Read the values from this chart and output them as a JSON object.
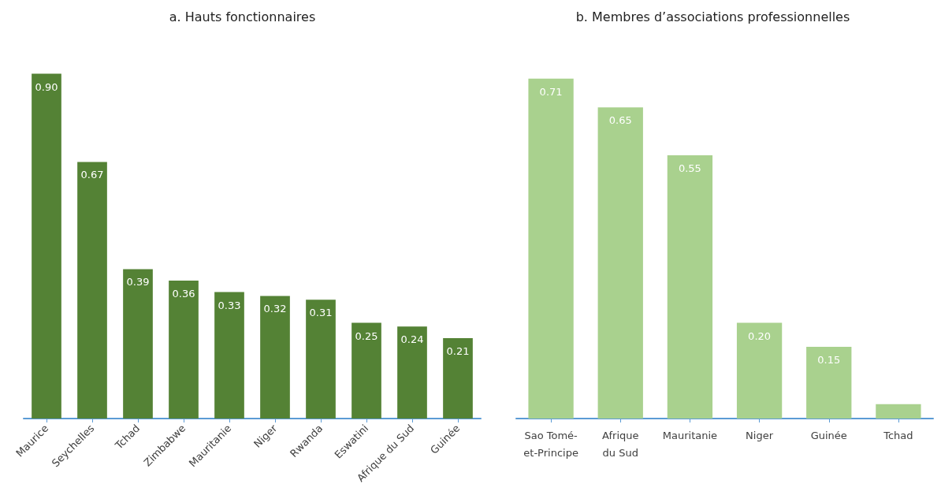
{
  "chart_data": [
    {
      "type": "bar",
      "title": "a. Hauts fonctionnaires",
      "categories": [
        "Maurice",
        "Seychelles",
        "Tchad",
        "Zimbabwe",
        "Mauritanie",
        "Niger",
        "Rwanda",
        "Eswatini",
        "Afrique du Sud",
        "Guinée"
      ],
      "values": [
        0.9,
        0.67,
        0.39,
        0.36,
        0.33,
        0.32,
        0.31,
        0.25,
        0.24,
        0.21
      ],
      "value_labels": [
        "0.90",
        "0.67",
        "0.39",
        "0.36",
        "0.33",
        "0.32",
        "0.31",
        "0.25",
        "0.24",
        "0.21"
      ],
      "color": "#548235"
    },
    {
      "type": "bar",
      "title": "b. Membres d’associations professionnelles",
      "categories": [
        "Sao Tomé-et-Principe",
        "Afrique du Sud",
        "Mauritanie",
        "Niger",
        "Guinée",
        "Tchad"
      ],
      "values": [
        0.71,
        0.65,
        0.55,
        0.2,
        0.15,
        0.03
      ],
      "value_labels": [
        "0.71",
        "0.65",
        "0.55",
        "0.20",
        "0.15",
        null
      ],
      "color": "#a9d18e"
    }
  ]
}
